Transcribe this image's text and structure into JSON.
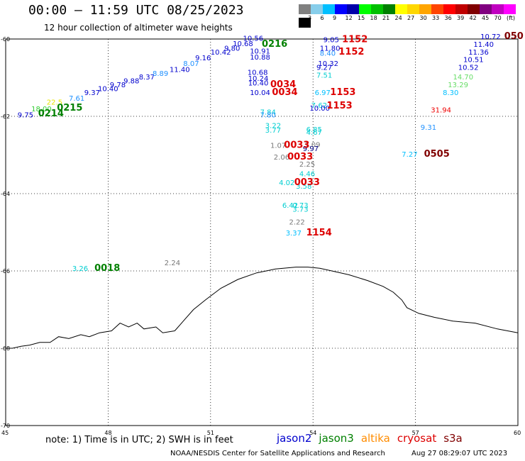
{
  "header": {
    "title": "00:00 – 11:59 UTC 08/25/2023",
    "subtitle": "12 hour collection of altimeter wave heights"
  },
  "color_scale": {
    "colors": [
      "#808080",
      "#87ceeb",
      "#00bfff",
      "#0000ff",
      "#0000aa",
      "#00ff00",
      "#00c000",
      "#008000",
      "#ffff00",
      "#ffd700",
      "#ffa500",
      "#ff4500",
      "#ff0000",
      "#c00000",
      "#800000",
      "#800080",
      "#c000c0",
      "#ff00ff",
      "#000000"
    ],
    "labels": [
      "3",
      "6",
      "9",
      "12",
      "15",
      "18",
      "21",
      "24",
      "27",
      "30",
      "33",
      "36",
      "39",
      "42",
      "45",
      "70",
      "(ft)"
    ]
  },
  "axes": {
    "lat_labels": [
      "-60",
      "-62",
      "-64",
      "-66",
      "-68",
      "-70"
    ],
    "lon_labels": [
      "45",
      "48",
      "51",
      "54",
      "57",
      "60"
    ]
  },
  "observations": [
    {
      "text": "9.75",
      "lon": 45.35,
      "lat": -62.03,
      "color": "#0000cd"
    },
    {
      "text": "18.00",
      "lon": 45.75,
      "lat": -61.87,
      "color": "#33cc33"
    },
    {
      "text": "22.5",
      "lon": 46.2,
      "lat": -61.7,
      "color": "#e6e600"
    },
    {
      "text": "7.61",
      "lon": 46.85,
      "lat": -61.6,
      "color": "#1e90ff"
    },
    {
      "text": "9.37",
      "lon": 47.3,
      "lat": -61.45,
      "color": "#0000cd"
    },
    {
      "text": "10.40",
      "lon": 47.7,
      "lat": -61.35,
      "color": "#0000cd"
    },
    {
      "text": "9.78",
      "lon": 48.05,
      "lat": -61.25,
      "color": "#0000cd"
    },
    {
      "text": "9.88",
      "lon": 48.45,
      "lat": -61.15,
      "color": "#0000cd"
    },
    {
      "text": "8.37",
      "lon": 48.9,
      "lat": -61.05,
      "color": "#0000cd"
    },
    {
      "text": "8.89",
      "lon": 49.3,
      "lat": -60.95,
      "color": "#1e90ff"
    },
    {
      "text": "11.40",
      "lon": 49.8,
      "lat": -60.85,
      "color": "#0000cd"
    },
    {
      "text": "8.07",
      "lon": 50.2,
      "lat": -60.7,
      "color": "#1e90ff"
    },
    {
      "text": "9.16",
      "lon": 50.55,
      "lat": -60.55,
      "color": "#0000cd"
    },
    {
      "text": "10.42",
      "lon": 51.0,
      "lat": -60.4,
      "color": "#0000cd"
    },
    {
      "text": "9.80",
      "lon": 51.4,
      "lat": -60.3,
      "color": "#0000cd"
    },
    {
      "text": "10.68",
      "lon": 51.65,
      "lat": -60.18,
      "color": "#0000cd"
    },
    {
      "text": "10.56",
      "lon": 51.95,
      "lat": -60.05,
      "color": "#0000cd"
    },
    {
      "text": "10.91",
      "lon": 52.15,
      "lat": -60.38,
      "color": "#0000cd"
    },
    {
      "text": "10.88",
      "lon": 52.15,
      "lat": -60.53,
      "color": "#0000cd"
    },
    {
      "text": "10.68",
      "lon": 52.08,
      "lat": -60.93,
      "color": "#0000cd"
    },
    {
      "text": "10.24",
      "lon": 52.1,
      "lat": -61.08,
      "color": "#0000cd"
    },
    {
      "text": "10.40",
      "lon": 52.1,
      "lat": -61.2,
      "color": "#0000cd"
    },
    {
      "text": "10.04",
      "lon": 52.15,
      "lat": -61.45,
      "color": "#0000cd"
    },
    {
      "text": "7.84",
      "lon": 52.45,
      "lat": -61.95,
      "color": "#00ced1"
    },
    {
      "text": "7.80",
      "lon": 52.45,
      "lat": -62.03,
      "color": "#1e90ff"
    },
    {
      "text": "3.22",
      "lon": 52.6,
      "lat": -62.3,
      "color": "#00ced1"
    },
    {
      "text": "3.77",
      "lon": 52.6,
      "lat": -62.42,
      "color": "#00ced1"
    },
    {
      "text": "1.07",
      "lon": 52.75,
      "lat": -62.82,
      "color": "#777777"
    },
    {
      "text": "2.06",
      "lon": 52.85,
      "lat": -63.12,
      "color": "#777777"
    },
    {
      "text": "4.02",
      "lon": 53.0,
      "lat": -63.78,
      "color": "#00ced1"
    },
    {
      "text": "6.42",
      "lon": 53.1,
      "lat": -64.37,
      "color": "#00ced1"
    },
    {
      "text": "9.05",
      "lon": 54.3,
      "lat": -60.08,
      "color": "#0000cd"
    },
    {
      "text": "11.80",
      "lon": 54.2,
      "lat": -60.3,
      "color": "#0000cd"
    },
    {
      "text": "8.40",
      "lon": 54.2,
      "lat": -60.43,
      "color": "#1e90ff"
    },
    {
      "text": "10.32",
      "lon": 54.15,
      "lat": -60.7,
      "color": "#0000cd"
    },
    {
      "text": "9.27",
      "lon": 54.1,
      "lat": -60.8,
      "color": "#0000cd"
    },
    {
      "text": "7.51",
      "lon": 54.1,
      "lat": -61.0,
      "color": "#00ced1"
    },
    {
      "text": "6.97",
      "lon": 54.05,
      "lat": -61.45,
      "color": "#00bfff"
    },
    {
      "text": "7.62",
      "lon": 53.95,
      "lat": -61.78,
      "color": "#00ced1"
    },
    {
      "text": "10.00",
      "lon": 53.9,
      "lat": -61.85,
      "color": "#0000cd"
    },
    {
      "text": "6.85",
      "lon": 53.8,
      "lat": -62.4,
      "color": "#00ced1"
    },
    {
      "text": "4.67",
      "lon": 53.8,
      "lat": -62.48,
      "color": "#00ced1"
    },
    {
      "text": "1.09",
      "lon": 53.75,
      "lat": -62.8,
      "color": "#777777"
    },
    {
      "text": "9.97",
      "lon": 53.7,
      "lat": -62.9,
      "color": "#000080"
    },
    {
      "text": "2.25",
      "lon": 53.6,
      "lat": -63.3,
      "color": "#777777"
    },
    {
      "text": "4.46",
      "lon": 53.6,
      "lat": -63.55,
      "color": "#00ced1"
    },
    {
      "text": "3.58",
      "lon": 53.5,
      "lat": -63.87,
      "color": "#00ced1"
    },
    {
      "text": "0.73",
      "lon": 53.4,
      "lat": -64.37,
      "color": "#00ced1"
    },
    {
      "text": "3.73",
      "lon": 53.4,
      "lat": -64.47,
      "color": "#00ced1"
    },
    {
      "text": "2.22",
      "lon": 53.3,
      "lat": -64.8,
      "color": "#777777"
    },
    {
      "text": "3.37",
      "lon": 53.2,
      "lat": -65.08,
      "color": "#00bfff"
    },
    {
      "text": "10.72",
      "lon": 58.9,
      "lat": -60.0,
      "color": "#0000cd"
    },
    {
      "text": "11.40",
      "lon": 58.7,
      "lat": -60.2,
      "color": "#0000cd"
    },
    {
      "text": "11.36",
      "lon": 58.55,
      "lat": -60.4,
      "color": "#0000cd"
    },
    {
      "text": "10.51",
      "lon": 58.4,
      "lat": -60.6,
      "color": "#0000cd"
    },
    {
      "text": "10.52",
      "lon": 58.25,
      "lat": -60.8,
      "color": "#0000cd"
    },
    {
      "text": "14.70",
      "lon": 58.1,
      "lat": -61.05,
      "color": "#66dd66"
    },
    {
      "text": "13.29",
      "lon": 57.95,
      "lat": -61.25,
      "color": "#66dd66"
    },
    {
      "text": "8.30",
      "lon": 57.8,
      "lat": -61.45,
      "color": "#00bfff"
    },
    {
      "text": "31.94",
      "lon": 57.45,
      "lat": -61.9,
      "color": "#ee0000"
    },
    {
      "text": "9.31",
      "lon": 57.15,
      "lat": -62.35,
      "color": "#1e90ff"
    },
    {
      "text": "7.27",
      "lon": 56.6,
      "lat": -63.05,
      "color": "#00bfff"
    },
    {
      "text": "3.26",
      "lon": 46.95,
      "lat": -66.0,
      "color": "#00ced1"
    },
    {
      "text": "2.24",
      "lon": 49.65,
      "lat": -65.85,
      "color": "#777777"
    }
  ],
  "time_labels": [
    {
      "text": "0214",
      "lon": 45.95,
      "lat": -62.0,
      "color": "#008000"
    },
    {
      "text": "0215",
      "lon": 46.5,
      "lat": -61.85,
      "color": "#008000"
    },
    {
      "text": "0216",
      "lon": 52.5,
      "lat": -60.2,
      "color": "#008000"
    },
    {
      "text": "0018",
      "lon": 47.6,
      "lat": -66.0,
      "color": "#008000"
    },
    {
      "text": "0034",
      "lon": 52.75,
      "lat": -61.25,
      "color": "#dd0000"
    },
    {
      "text": "0034",
      "lon": 52.8,
      "lat": -61.45,
      "color": "#dd0000"
    },
    {
      "text": "0033",
      "lon": 53.15,
      "lat": -62.82,
      "color": "#dd0000"
    },
    {
      "text": "0033",
      "lon": 53.25,
      "lat": -63.12,
      "color": "#dd0000"
    },
    {
      "text": "0033",
      "lon": 53.45,
      "lat": -63.78,
      "color": "#dd0000"
    },
    {
      "text": "1152",
      "lon": 54.85,
      "lat": -60.08,
      "color": "#dd0000"
    },
    {
      "text": "1152",
      "lon": 54.75,
      "lat": -60.4,
      "color": "#dd0000"
    },
    {
      "text": "1153",
      "lon": 54.5,
      "lat": -61.45,
      "color": "#dd0000"
    },
    {
      "text": "1153",
      "lon": 54.4,
      "lat": -61.8,
      "color": "#dd0000"
    },
    {
      "text": "1154",
      "lon": 53.8,
      "lat": -65.08,
      "color": "#dd0000"
    },
    {
      "text": "0505",
      "lon": 57.25,
      "lat": -63.05,
      "color": "#800000"
    },
    {
      "text": "050",
      "lon": 59.6,
      "lat": -60.0,
      "color": "#800000"
    }
  ],
  "footer": {
    "note": "note: 1) Time is in UTC; 2) SWH is in feet",
    "satellites": [
      {
        "name": "jason2",
        "color": "#0000cd"
      },
      {
        "name": "jason3",
        "color": "#008000"
      },
      {
        "name": "altika",
        "color": "#ff8c00"
      },
      {
        "name": "cryosat",
        "color": "#dd0000"
      },
      {
        "name": "s3a",
        "color": "#800000"
      }
    ],
    "credit": "NOAA/NESDIS Center for Satellite Applications and Research",
    "generated": "Aug 27 08:29:07 UTC 2023"
  }
}
